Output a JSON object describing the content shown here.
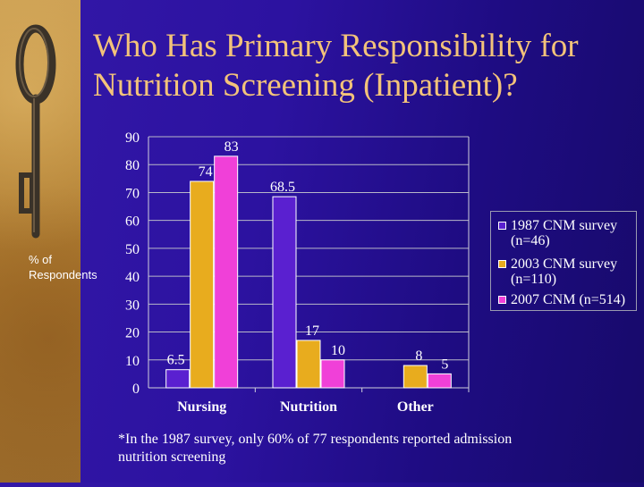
{
  "slide": {
    "title_line1": "Who Has Primary Responsibility for",
    "title_line2": "Nutrition Screening (Inpatient)?",
    "footnote": "*In the 1987 survey, only 60% of 77 respondents reported admission nutrition screening",
    "y_axis_label_line1": "% of",
    "y_axis_label_line2": "Respondents",
    "legend": [
      {
        "line1": "1987 CNM survey",
        "line2": "(n=46)"
      },
      {
        "line1": "2003 CNM survey",
        "line2": "(n=110)"
      },
      {
        "line1": "2007 CNM (n=514)",
        "line2": ""
      }
    ]
  },
  "colors": {
    "series_1987": "#5a20d0",
    "series_2003": "#e8ac1e",
    "series_2007": "#f040d8",
    "title": "#f3c37a",
    "text": "#ffffff"
  },
  "chart_data": {
    "type": "bar",
    "title": "Who Has Primary Responsibility for Nutrition Screening (Inpatient)?",
    "ylabel": "% of Respondents",
    "xlabel": "",
    "categories": [
      "Nursing",
      "Nutrition",
      "Other"
    ],
    "series": [
      {
        "name": "1987 CNM survey (n=46)",
        "values": [
          6.5,
          68.5,
          null
        ],
        "labels": [
          "6.5",
          "68.5",
          ""
        ]
      },
      {
        "name": "2003 CNM survey (n=110)",
        "values": [
          74,
          17,
          8
        ],
        "labels": [
          "74",
          "17",
          "8"
        ]
      },
      {
        "name": "2007 CNM (n=514)",
        "values": [
          83,
          10,
          5
        ],
        "labels": [
          "83",
          "10",
          "5"
        ]
      }
    ],
    "yticks": [
      0,
      10,
      20,
      30,
      40,
      50,
      60,
      70,
      80,
      90
    ],
    "ylim": [
      0,
      90
    ],
    "grid": true,
    "legend_position": "right"
  }
}
